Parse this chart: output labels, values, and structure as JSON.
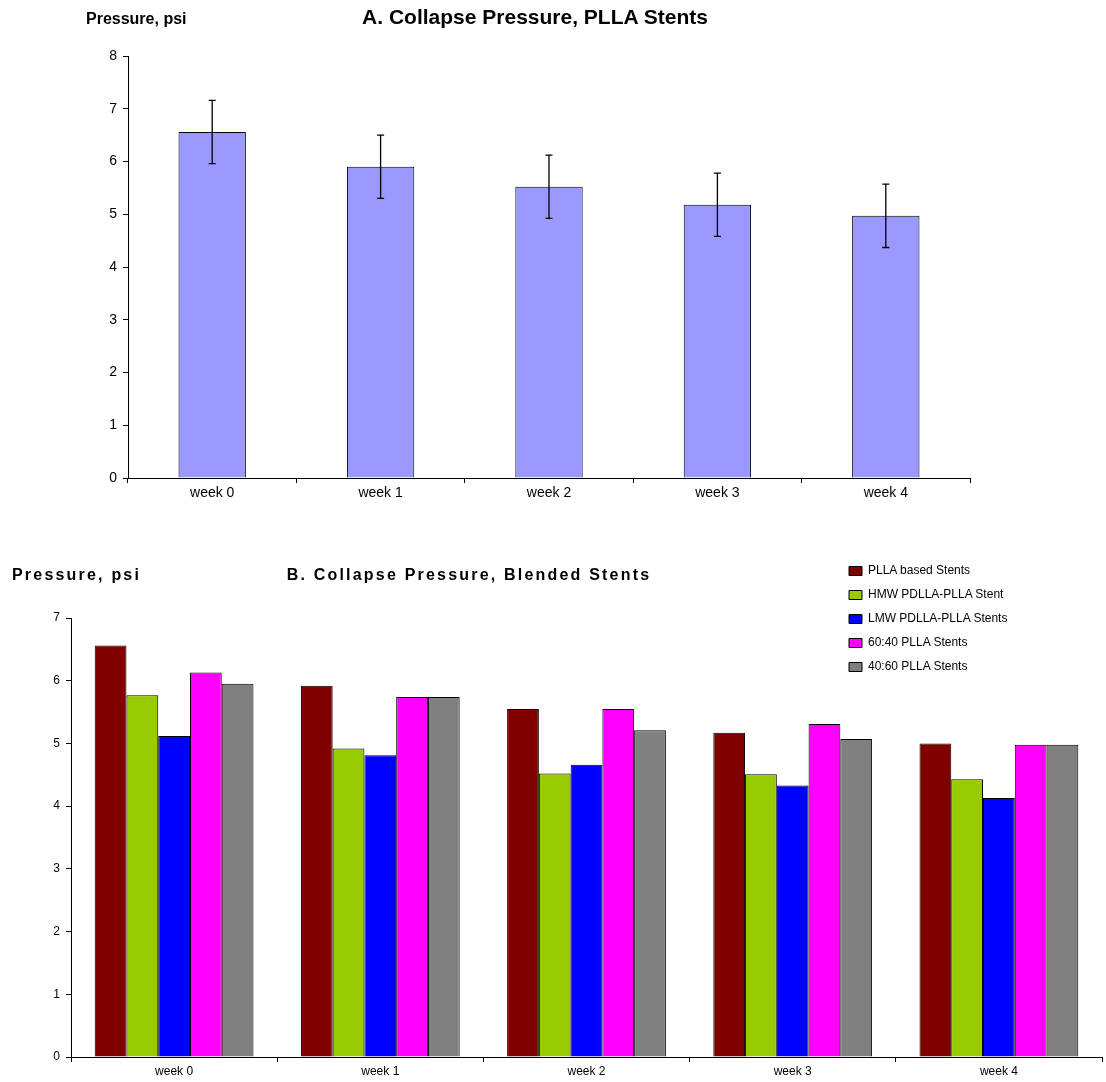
{
  "chart_data": [
    {
      "type": "bar",
      "title": "A. Collapse Pressure, PLLA Stents",
      "ylabel": "Pressure, psi",
      "categories": [
        "week 0",
        "week 1",
        "week 2",
        "week 3",
        "week 4"
      ],
      "values": [
        6.56,
        5.9,
        5.52,
        5.18,
        4.97
      ],
      "errors": [
        0.6,
        0.6,
        0.6,
        0.6,
        0.6
      ],
      "color": "#9999ff",
      "ylim": [
        0,
        8
      ],
      "yticks": [
        0,
        1,
        2,
        3,
        4,
        5,
        6,
        7,
        8
      ]
    },
    {
      "type": "bar",
      "title": "B. Collapse Pressure, Blended Stents",
      "ylabel": "Pressure, psi",
      "categories": [
        "week 0",
        "week 1",
        "week 2",
        "week 3",
        "week 4"
      ],
      "series": [
        {
          "name": "PLLA based Stents",
          "color": "#800000",
          "values": [
            6.56,
            5.92,
            5.55,
            5.17,
            5.0
          ]
        },
        {
          "name": "HMW PDLLA-PLLA Stent",
          "color": "#99cc00",
          "values": [
            5.77,
            4.92,
            4.52,
            4.51,
            4.43
          ]
        },
        {
          "name": "LMW PDLLA-PLLA Stents",
          "color": "#0000ff",
          "values": [
            5.12,
            4.81,
            4.66,
            4.33,
            4.13
          ]
        },
        {
          "name": "60:40 PLLA Stents",
          "color": "#ff00ff",
          "values": [
            6.13,
            5.74,
            5.55,
            5.31,
            4.98
          ]
        },
        {
          "name": "40:60 PLLA Stents",
          "color": "#808080",
          "values": [
            5.95,
            5.74,
            5.21,
            5.07,
            4.98
          ]
        }
      ],
      "ylim": [
        0,
        7
      ],
      "yticks": [
        0,
        1,
        2,
        3,
        4,
        5,
        6,
        7
      ],
      "legend": "top right"
    }
  ]
}
